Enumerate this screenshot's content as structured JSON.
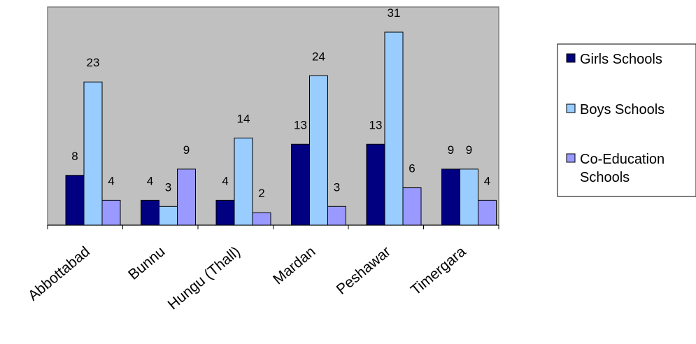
{
  "chart_data": {
    "type": "bar",
    "title": "",
    "xlabel": "",
    "ylabel": "",
    "categories": [
      "Abbottabad",
      "Bunnu",
      "Hungu (Thall)",
      "Mardan",
      "Peshawar",
      "Timergara"
    ],
    "series": [
      {
        "name": "Girls Schools",
        "values": [
          8,
          4,
          4,
          13,
          13,
          9
        ],
        "color": "#000080"
      },
      {
        "name": "Boys Schools",
        "values": [
          23,
          3,
          14,
          24,
          31,
          9
        ],
        "color": "#99CCFF"
      },
      {
        "name": "Co-Education Schools",
        "values": [
          4,
          9,
          2,
          3,
          6,
          4
        ],
        "color": "#9999FF"
      }
    ],
    "ylim": [
      0,
      35
    ],
    "grid": false,
    "data_labels": true,
    "legend_position": "right",
    "plot_background": "#C0C0C0"
  }
}
